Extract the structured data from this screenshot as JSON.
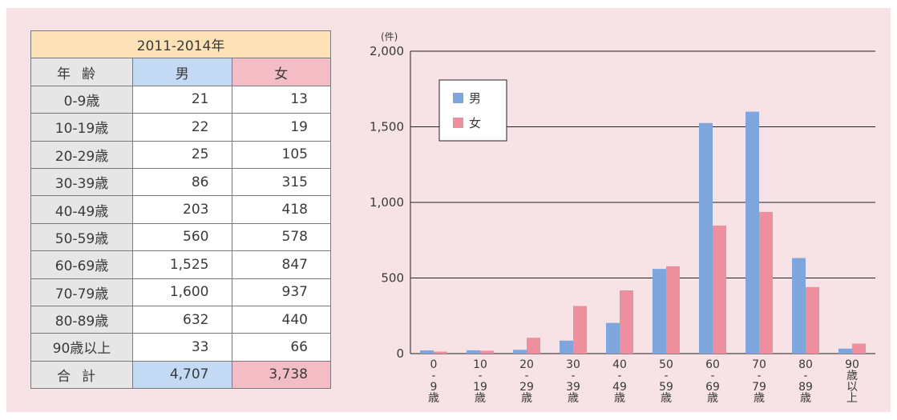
{
  "table": {
    "period": "2011-2014年",
    "header": {
      "age": "年齢",
      "male": "男",
      "female": "女"
    },
    "rows": [
      {
        "age": "0-9歳",
        "male": "21",
        "female": "13"
      },
      {
        "age": "10-19歳",
        "male": "22",
        "female": "19"
      },
      {
        "age": "20-29歳",
        "male": "25",
        "female": "105"
      },
      {
        "age": "30-39歳",
        "male": "86",
        "female": "315"
      },
      {
        "age": "40-49歳",
        "male": "203",
        "female": "418"
      },
      {
        "age": "50-59歳",
        "male": "560",
        "female": "578"
      },
      {
        "age": "60-69歳",
        "male": "1,525",
        "female": "847"
      },
      {
        "age": "70-79歳",
        "male": "1,600",
        "female": "937"
      },
      {
        "age": "80-89歳",
        "male": "632",
        "female": "440"
      },
      {
        "age": "90歳以上",
        "male": "33",
        "female": "66"
      }
    ],
    "total": {
      "label": "合計",
      "male": "4,707",
      "female": "3,738"
    }
  },
  "chart_data": {
    "type": "bar",
    "unit_label": "(件)",
    "categories": [
      "0-9歳",
      "10-19歳",
      "20-29歳",
      "30-39歳",
      "40-49歳",
      "50-59歳",
      "60-69歳",
      "70-79歳",
      "80-89歳",
      "90歳以上"
    ],
    "category_labels": [
      [
        "0",
        "-",
        "9",
        "歳"
      ],
      [
        "10",
        "-",
        "19",
        "歳"
      ],
      [
        "20",
        "-",
        "29",
        "歳"
      ],
      [
        "30",
        "-",
        "39",
        "歳"
      ],
      [
        "40",
        "-",
        "49",
        "歳"
      ],
      [
        "50",
        "-",
        "59",
        "歳"
      ],
      [
        "60",
        "-",
        "69",
        "歳"
      ],
      [
        "70",
        "-",
        "79",
        "歳"
      ],
      [
        "80",
        "-",
        "89",
        "歳"
      ],
      [
        "90",
        "歳",
        "以",
        "上"
      ]
    ],
    "series": [
      {
        "name": "男",
        "color": "#7ea6dc",
        "values": [
          21,
          22,
          25,
          86,
          203,
          560,
          1525,
          1600,
          632,
          33
        ]
      },
      {
        "name": "女",
        "color": "#ee8f9e",
        "values": [
          13,
          19,
          105,
          315,
          418,
          578,
          847,
          937,
          440,
          66
        ]
      }
    ],
    "ylim": [
      0,
      2000
    ],
    "yticks": [
      0,
      500,
      1000,
      1500,
      2000
    ],
    "ytick_labels": [
      "0",
      "500",
      "1,000",
      "1,500",
      "2,000"
    ],
    "grid": true,
    "legend_position": "top-left"
  }
}
